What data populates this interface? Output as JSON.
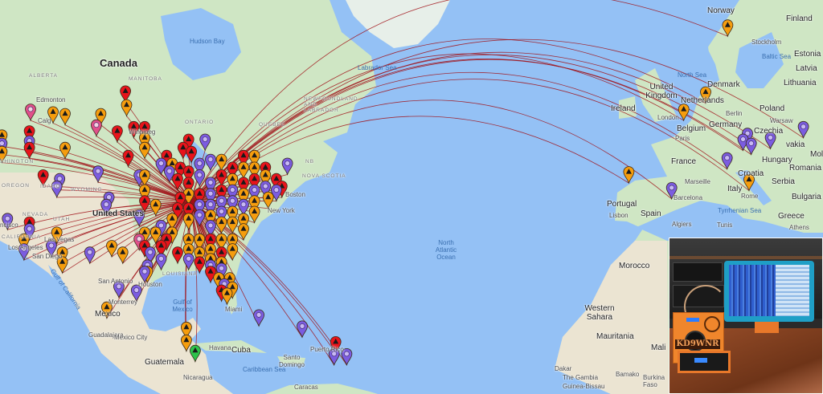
{
  "map": {
    "hub": [
      -87.6,
      41.9
    ],
    "line_color": "#a01018",
    "marker_colors": {
      "r": "#e8141b",
      "o": "#f59d0e",
      "p": "#7b5ce0",
      "m": "#e0508a",
      "g": "#2ec24a"
    },
    "water_color": "#94c1f5",
    "markers": [
      [
        -122,
        49,
        "o"
      ],
      [
        -122,
        48,
        "p"
      ],
      [
        -122,
        47,
        "o"
      ],
      [
        -116.8,
        52,
        "m"
      ],
      [
        -112.7,
        51.7,
        "o"
      ],
      [
        -117,
        47.5,
        "r"
      ],
      [
        -117,
        49.5,
        "r"
      ],
      [
        -117,
        48.3,
        "p"
      ],
      [
        -110.5,
        51.5,
        "o"
      ],
      [
        -110.5,
        47.5,
        "o"
      ],
      [
        -104,
        51.5,
        "o"
      ],
      [
        -104.8,
        50.2,
        "m"
      ],
      [
        -99.5,
        54,
        "r"
      ],
      [
        -99.3,
        52.5,
        "o"
      ],
      [
        -98,
        50,
        "r"
      ],
      [
        -101,
        49.5,
        "r"
      ],
      [
        -96,
        50,
        "r"
      ],
      [
        -99,
        46.5,
        "r"
      ],
      [
        -96,
        48.7,
        "o"
      ],
      [
        -96,
        47.5,
        "o"
      ],
      [
        -112,
        42.5,
        "p"
      ],
      [
        -111.5,
        43.5,
        "p"
      ],
      [
        -114.5,
        44,
        "r"
      ],
      [
        -104.5,
        44.5,
        "p"
      ],
      [
        -103,
        40,
        "p"
      ],
      [
        -102.5,
        41,
        "p"
      ],
      [
        -121,
        38,
        "p"
      ],
      [
        -117,
        36.5,
        "p"
      ],
      [
        -117,
        37.5,
        "r"
      ],
      [
        -118,
        35,
        "o"
      ],
      [
        -118,
        33.5,
        "p"
      ],
      [
        -112,
        36,
        "o"
      ],
      [
        -113,
        34,
        "p"
      ],
      [
        -111,
        33,
        "o"
      ],
      [
        -111,
        31.5,
        "o"
      ],
      [
        -106,
        33,
        "p"
      ],
      [
        -102,
        34,
        "o"
      ],
      [
        -100,
        33,
        "o"
      ],
      [
        -97,
        44,
        "p"
      ],
      [
        -96,
        44,
        "o"
      ],
      [
        -96,
        42,
        "o"
      ],
      [
        -96,
        40.5,
        "r"
      ],
      [
        -97,
        38.5,
        "p"
      ],
      [
        -94,
        40,
        "o"
      ],
      [
        -96,
        36,
        "o"
      ],
      [
        -94,
        36,
        "o"
      ],
      [
        -97,
        35,
        "m"
      ],
      [
        -96,
        34,
        "r"
      ],
      [
        -95,
        33,
        "p"
      ],
      [
        -95.5,
        31,
        "p"
      ],
      [
        -95.5,
        30,
        "o"
      ],
      [
        -93,
        32,
        "p"
      ],
      [
        -92,
        35,
        "r"
      ],
      [
        -93,
        34,
        "r"
      ],
      [
        -90,
        33,
        "r"
      ],
      [
        -93,
        37,
        "p"
      ],
      [
        -91,
        38,
        "o"
      ],
      [
        -91,
        36,
        "o"
      ],
      [
        -96,
        30,
        "p"
      ],
      [
        -97.5,
        27,
        "p"
      ],
      [
        -92,
        46.5,
        "r"
      ],
      [
        -89,
        47.5,
        "r"
      ],
      [
        -87.5,
        47,
        "r"
      ],
      [
        -88,
        48.5,
        "r"
      ],
      [
        -85,
        48.5,
        "p"
      ],
      [
        -93,
        45.5,
        "p"
      ],
      [
        -91.5,
        44.5,
        "p"
      ],
      [
        -91,
        45.5,
        "o"
      ],
      [
        -89.5,
        45,
        "r"
      ],
      [
        -90,
        43.5,
        "r"
      ],
      [
        -88,
        44.5,
        "r"
      ],
      [
        -88,
        43,
        "r"
      ],
      [
        -88,
        41.5,
        "o"
      ],
      [
        -89.5,
        41,
        "r"
      ],
      [
        -90,
        39.5,
        "r"
      ],
      [
        -88,
        39.5,
        "r"
      ],
      [
        -88,
        38,
        "o"
      ],
      [
        -86,
        45.5,
        "p"
      ],
      [
        -86,
        44,
        "p"
      ],
      [
        -86,
        41.5,
        "r"
      ],
      [
        -86,
        40,
        "p"
      ],
      [
        -86,
        38.5,
        "p"
      ],
      [
        -84,
        46,
        "p"
      ],
      [
        -84,
        43,
        "p"
      ],
      [
        -84,
        41.5,
        "p"
      ],
      [
        -84,
        40,
        "p"
      ],
      [
        -84,
        38.5,
        "o"
      ],
      [
        -84,
        37,
        "p"
      ],
      [
        -82,
        46,
        "o"
      ],
      [
        -82,
        44,
        "r"
      ],
      [
        -82,
        42,
        "r"
      ],
      [
        -82,
        40.5,
        "p"
      ],
      [
        -82,
        39,
        "p"
      ],
      [
        -82,
        37.5,
        "o"
      ],
      [
        -80,
        45,
        "r"
      ],
      [
        -80,
        43.5,
        "o"
      ],
      [
        -80,
        42,
        "p"
      ],
      [
        -80,
        40.5,
        "p"
      ],
      [
        -80,
        39,
        "o"
      ],
      [
        -80,
        37.5,
        "o"
      ],
      [
        -78,
        46.5,
        "r"
      ],
      [
        -78,
        45,
        "o"
      ],
      [
        -78,
        43,
        "r"
      ],
      [
        -78,
        41.5,
        "o"
      ],
      [
        -78,
        40,
        "p"
      ],
      [
        -78,
        38,
        "o"
      ],
      [
        -78,
        36.5,
        "o"
      ],
      [
        -76,
        46.5,
        "o"
      ],
      [
        -76,
        45,
        "o"
      ],
      [
        -76,
        43.5,
        "r"
      ],
      [
        -76,
        42,
        "p"
      ],
      [
        -76,
        40.5,
        "o"
      ],
      [
        -76,
        39,
        "o"
      ],
      [
        -74,
        45,
        "r"
      ],
      [
        -74,
        44,
        "o"
      ],
      [
        -74,
        42.5,
        "p"
      ],
      [
        -73.5,
        41,
        "o"
      ],
      [
        -72,
        43.5,
        "r"
      ],
      [
        -72,
        42,
        "p"
      ],
      [
        -71,
        42.5,
        "r"
      ],
      [
        -70,
        45.5,
        "p"
      ],
      [
        -88,
        35,
        "o"
      ],
      [
        -88,
        33.5,
        "o"
      ],
      [
        -88,
        32,
        "p"
      ],
      [
        -86,
        35,
        "o"
      ],
      [
        -86,
        33,
        "o"
      ],
      [
        -86,
        31.5,
        "r"
      ],
      [
        -84,
        35,
        "r"
      ],
      [
        -84,
        33.5,
        "o"
      ],
      [
        -84,
        32,
        "o"
      ],
      [
        -82,
        35,
        "o"
      ],
      [
        -82,
        33,
        "r"
      ],
      [
        -82,
        31.5,
        "o"
      ],
      [
        -80,
        35,
        "o"
      ],
      [
        -80,
        33.5,
        "o"
      ],
      [
        -84,
        30,
        "r"
      ],
      [
        -82.5,
        29,
        "o"
      ],
      [
        -81.5,
        28,
        "p"
      ],
      [
        -82,
        27,
        "r"
      ],
      [
        -81,
        26.5,
        "o"
      ],
      [
        -80.5,
        29,
        "o"
      ],
      [
        -80,
        27.5,
        "o"
      ],
      [
        -84,
        31,
        "p"
      ],
      [
        -82,
        30.5,
        "p"
      ],
      [
        -75.2,
        22.9,
        "p"
      ],
      [
        -67.3,
        21,
        "p"
      ],
      [
        -61.2,
        18.3,
        "r"
      ],
      [
        -61.5,
        16.2,
        "p"
      ],
      [
        -59.2,
        16.2,
        "p"
      ],
      [
        -88.4,
        20.8,
        "o"
      ],
      [
        -88.4,
        18.6,
        "o"
      ],
      [
        -86.8,
        16.8,
        "g"
      ],
      [
        -102.9,
        24.2,
        "o"
      ],
      [
        -100.7,
        27.6,
        "p"
      ],
      [
        10.2,
        60.5,
        "o"
      ],
      [
        6.2,
        53.9,
        "o"
      ],
      [
        2.2,
        52,
        "o"
      ],
      [
        13.8,
        49.2,
        "p"
      ],
      [
        14.5,
        48,
        "p"
      ],
      [
        18,
        48.7,
        "p"
      ],
      [
        24,
        50,
        "p"
      ],
      [
        10.1,
        46.2,
        "p"
      ],
      [
        14.1,
        43.4,
        "o"
      ],
      [
        -7.8,
        44.4,
        "o"
      ],
      [
        0,
        42.3,
        "p"
      ],
      [
        13,
        48.5,
        "p"
      ]
    ]
  },
  "labels": {
    "hudson_bay": "Hudson Bay",
    "canada": "Canada",
    "alberta": "ALBERTA",
    "manitoba": "MANITOBA",
    "edmonton": "Edmonton",
    "calgary": "Calg",
    "winnipeg": "Winnipeg",
    "ontario": "ONTARIO",
    "quebec": "QUEBEC",
    "labrador_sea": "Labrador Sea",
    "newfoundland": "NEWFOUNDLAND AND LABRADOR",
    "nb": "NB",
    "nova_scotia": "NOVA SCOTIA",
    "boston": "Boston",
    "new_york": "New York",
    "united_states": "United States",
    "wyoming": "WYOMING",
    "oregon": "OREGON",
    "idaho": "IDAHO",
    "nevada": "NEVADA",
    "utah": "UTAH",
    "washington": "SHINGTON",
    "california": "CALIFORNIA",
    "los_angeles": "Los Angeles",
    "san_diego": "San Diego",
    "las_vegas": "Las Vegas",
    "san_francisco": "ncisco",
    "san_antonio": "San Antonio",
    "houston": "Houston",
    "louisiana": "LOUISIANA",
    "monterrey": "Monterrey",
    "mexico": "Mexico",
    "guadalajara": "Guadalajara",
    "mexico_city": "Mexico City",
    "gulf_of_mexico": "Gulf of Mexico",
    "gulf_of_california": "Gulf of California",
    "havana": "Havana",
    "cuba": "Cuba",
    "santo_domingo": "Santo Domingo",
    "puerto_rico": "Puerto Rico",
    "caribbean_sea": "Caribbean Sea",
    "guatemala": "Guatemala",
    "nicaragua": "Nicaragua",
    "caracas": "Caracas",
    "miami": "Miami",
    "north_atlantic_ocean": "North Atlantic Ocean",
    "norway": "Norway",
    "finland": "Finland",
    "stockholm": "Stockholm",
    "estonia": "Estonia",
    "baltic_sea": "Baltic Sea",
    "north_sea": "North Sea",
    "latvia": "Latvia",
    "denmark": "Denmark",
    "lithuania": "Lithuania",
    "united_kingdom": "United Kingdom",
    "ireland": "Ireland",
    "london": "London",
    "netherlands": "Netherlands",
    "berlin": "Berlin",
    "poland": "Poland",
    "warsaw": "Warsaw",
    "germany": "Germany",
    "belgium": "Belgium",
    "paris": "Paris",
    "czechia": "Czechia",
    "slovakia": "vakia",
    "moldova": "Mol",
    "france": "France",
    "hungary": "Hungary",
    "romania": "Romania",
    "croatia": "Croatia",
    "marseille": "Marseille",
    "serbia": "Serbia",
    "italy": "Italy",
    "bulgaria": "Bulgaria",
    "portugal": "Portugal",
    "spain": "Spain",
    "lisbon": "Lisbon",
    "barcelona": "Barcelona",
    "rome": "Rome",
    "tyrrhenian_sea": "Tyrrhenian Sea",
    "greece": "Greece",
    "algiers": "Algiers",
    "tunis": "Tunis",
    "athens": "Athens",
    "morocco": "Morocco",
    "western_sahara": "Western Sahara",
    "mauritania": "Mauritania",
    "mali": "Mali",
    "dakar": "Dakar",
    "the_gambia": "The Gambia",
    "bamako": "Bamako",
    "guinea_bissau": "Guinea-Bissau",
    "burkina_faso": "Burkina Faso"
  },
  "inset": {
    "callsign": "KD9WNR"
  }
}
